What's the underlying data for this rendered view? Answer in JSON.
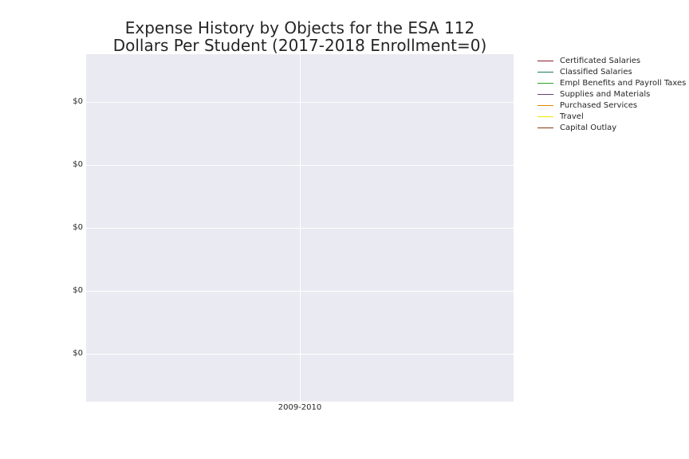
{
  "chart_data": {
    "type": "line",
    "title_lines": [
      "Expense History by Objects for the ESA 112",
      "Dollars Per Student (2017-2018 Enrollment=0)"
    ],
    "xlabel": "",
    "ylabel": "",
    "categories": [
      "2009-2010"
    ],
    "y_tick_labels": [
      "$0",
      "$0",
      "$0",
      "$0",
      "$0"
    ],
    "grid": true,
    "legend_position": "outside-right",
    "series": [
      {
        "name": "Certificated Salaries",
        "color": "#8b1a2b",
        "values": [
          null
        ]
      },
      {
        "name": "Classified Salaries",
        "color": "#1f7a5c",
        "values": [
          null
        ]
      },
      {
        "name": "Empl Benefits and Payroll Taxes",
        "color": "#2ca02c",
        "values": [
          null
        ]
      },
      {
        "name": "Supplies and Materials",
        "color": "#6a3d7a",
        "values": [
          null
        ]
      },
      {
        "name": "Purchased Services",
        "color": "#d98c00",
        "values": [
          null
        ]
      },
      {
        "name": "Travel",
        "color": "#f2e600",
        "values": [
          null
        ]
      },
      {
        "name": "Capital Outlay",
        "color": "#8b3a0e",
        "values": [
          null
        ]
      }
    ]
  }
}
